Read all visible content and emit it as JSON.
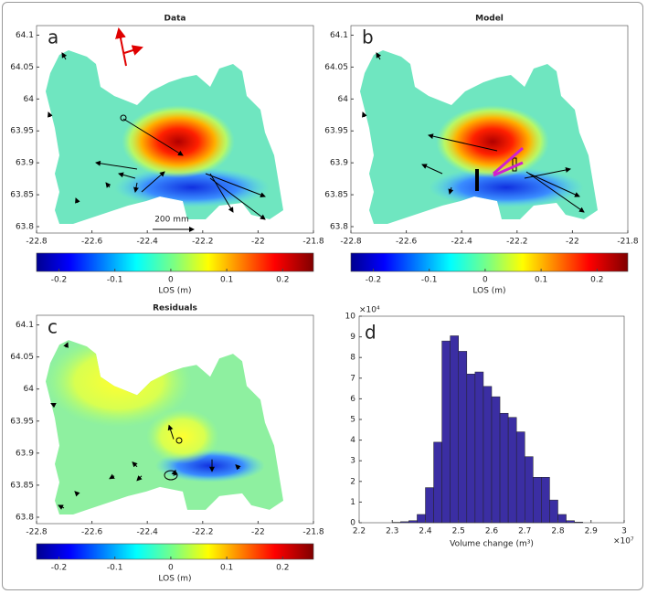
{
  "chart_data": [
    {
      "type": "map",
      "title": "Data",
      "panel_label": "a",
      "annotation": "200 mm",
      "xlim": [
        -22.8,
        -21.8
      ],
      "xticks": [
        -22.8,
        -22.6,
        -22.4,
        -22.2,
        -22,
        -21.8
      ],
      "ylim": [
        63.79,
        64.115
      ],
      "yticks": [
        63.8,
        63.85,
        63.9,
        63.95,
        64,
        64.05,
        64.1
      ],
      "colorbar": {
        "label": "LOS (m)",
        "clim": [
          -0.24,
          0.255
        ],
        "ticks": [
          -0.2,
          -0.1,
          0,
          0.1,
          0.2
        ]
      }
    },
    {
      "type": "map",
      "title": "Model",
      "panel_label": "b",
      "xlim": [
        -22.8,
        -21.8
      ],
      "xticks": [
        -22.8,
        -22.6,
        -22.4,
        -22.2,
        -22,
        -21.8
      ],
      "ylim": [
        63.79,
        64.115
      ],
      "yticks": [
        63.8,
        63.85,
        63.9,
        63.95,
        64,
        64.05,
        64.1
      ],
      "colorbar": {
        "label": "LOS (m)",
        "clim": [
          -0.24,
          0.255
        ],
        "ticks": [
          -0.2,
          -0.1,
          0,
          0.1,
          0.2
        ]
      }
    },
    {
      "type": "map",
      "title": "Residuals",
      "panel_label": "c",
      "xlim": [
        -22.8,
        -21.8
      ],
      "xticks": [
        -22.8,
        -22.6,
        -22.4,
        -22.2,
        -22,
        -21.8
      ],
      "ylim": [
        63.79,
        64.115
      ],
      "yticks": [
        63.8,
        63.85,
        63.9,
        63.95,
        64,
        64.05,
        64.1
      ],
      "colorbar": {
        "label": "LOS (m)",
        "clim": [
          -0.24,
          0.255
        ],
        "ticks": [
          -0.2,
          -0.1,
          0,
          0.1,
          0.2
        ]
      }
    },
    {
      "type": "histogram",
      "panel_label": "d",
      "xlabel": "Volume change (m³)",
      "x_exponent": "×10⁷",
      "y_exponent": "×10⁴",
      "color": "#3b2ea3",
      "bins": [
        2.3,
        2.325,
        2.35,
        2.375,
        2.4,
        2.425,
        2.45,
        2.475,
        2.5,
        2.525,
        2.55,
        2.575,
        2.6,
        2.625,
        2.65,
        2.675,
        2.7,
        2.725,
        2.75,
        2.775,
        2.8,
        2.825,
        2.85,
        2.875
      ],
      "counts": [
        0.02,
        0.05,
        0.1,
        0.4,
        1.7,
        3.9,
        8.8,
        9.05,
        8.3,
        7.2,
        7.3,
        6.6,
        6.1,
        5.3,
        5.1,
        4.4,
        3.2,
        2.2,
        2.2,
        1.1,
        0.4,
        0.1,
        0.03
      ],
      "xlim": [
        2.2,
        3
      ],
      "xticks": [
        2.2,
        2.3,
        2.4,
        2.5,
        2.6,
        2.7,
        2.8,
        2.9,
        3
      ],
      "ylim": [
        0,
        10
      ],
      "yticks": [
        0,
        1,
        2,
        3,
        4,
        5,
        6,
        7,
        8,
        9,
        10
      ]
    }
  ]
}
